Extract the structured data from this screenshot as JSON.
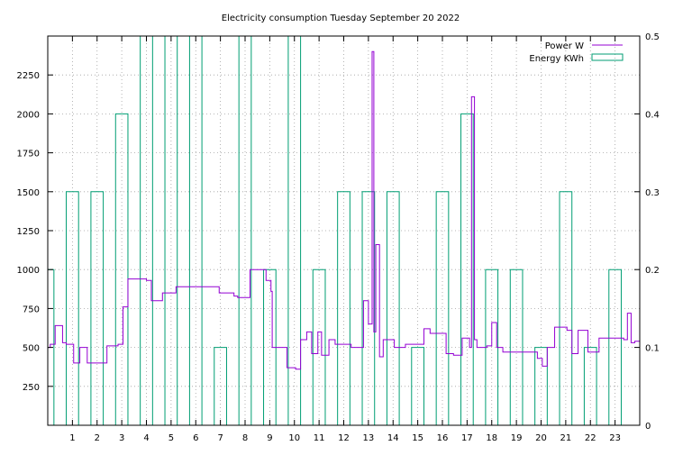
{
  "chart_data": {
    "type": "line",
    "title": "Electricity consumption Tuesday September 20 2022",
    "xlabel": "",
    "ylabel": "",
    "y2label": "",
    "xlim": [
      0,
      24
    ],
    "ylim": [
      0,
      2500
    ],
    "y2lim": [
      0,
      0.5
    ],
    "x_ticks": [
      "1",
      "2",
      "3",
      "4",
      "5",
      "6",
      "7",
      "8",
      "9",
      "10",
      "11",
      "12",
      "13",
      "14",
      "15",
      "16",
      "17",
      "18",
      "19",
      "20",
      "21",
      "22",
      "23"
    ],
    "y_ticks": [
      "250",
      "500",
      "750",
      "1000",
      "1250",
      "1500",
      "1750",
      "2000",
      "2250"
    ],
    "y2_ticks": [
      "0",
      "0.1",
      "0.2",
      "0.3",
      "0.4",
      "0.5"
    ],
    "grid": true,
    "legend_position": "top-right",
    "series": [
      {
        "name": "Power W",
        "color": "#9400d3",
        "axis": "left",
        "style": "steps",
        "x": [
          0,
          0.1,
          0.3,
          0.6,
          0.75,
          1.05,
          1.3,
          1.6,
          1.85,
          2.4,
          2.85,
          3.05,
          3.25,
          4.0,
          4.2,
          4.65,
          5.2,
          6.3,
          6.95,
          7.55,
          7.7,
          8.2,
          8.85,
          9.05,
          9.1,
          9.7,
          10.05,
          10.25,
          10.5,
          10.7,
          10.95,
          11.1,
          11.4,
          11.65,
          12.3,
          12.8,
          13.0,
          13.15,
          13.22,
          13.3,
          13.45,
          13.6,
          14.05,
          14.5,
          15.25,
          15.5,
          16.15,
          16.45,
          16.8,
          17.1,
          17.18,
          17.3,
          17.4,
          17.8,
          18.0,
          18.2,
          18.45,
          19.15,
          19.45,
          19.85,
          20.05,
          20.25,
          20.55,
          21.05,
          21.25,
          21.5,
          21.9,
          22.35,
          23.35,
          23.5,
          23.65,
          23.8,
          24.0
        ],
        "y": [
          500,
          520,
          640,
          530,
          520,
          400,
          500,
          400,
          400,
          510,
          520,
          760,
          940,
          930,
          800,
          850,
          890,
          890,
          850,
          830,
          820,
          1000,
          930,
          860,
          500,
          370,
          360,
          550,
          600,
          460,
          600,
          450,
          550,
          520,
          500,
          800,
          650,
          2400,
          600,
          1160,
          440,
          550,
          500,
          520,
          620,
          590,
          460,
          450,
          560,
          500,
          2110,
          550,
          500,
          510,
          660,
          500,
          470,
          470,
          470,
          430,
          380,
          500,
          630,
          610,
          460,
          610,
          470,
          560,
          550,
          720,
          530,
          540,
          540
        ]
      },
      {
        "name": "Energy KWh",
        "color": "#009e73",
        "axis": "right",
        "style": "bars",
        "x": [
          0,
          1,
          2,
          3,
          4,
          5,
          6,
          7,
          8,
          9,
          10,
          11,
          12,
          13,
          14,
          15,
          16,
          17,
          18,
          19,
          20,
          21,
          22,
          23
        ],
        "y": [
          0.2,
          0.3,
          0.3,
          0.4,
          0.5,
          0.5,
          0.5,
          0.1,
          0.5,
          0.2,
          0.5,
          0.2,
          0.3,
          0.3,
          0.3,
          0.1,
          0.3,
          0.4,
          0.2,
          0.2,
          0.1,
          0.3,
          0.1,
          0.2
        ]
      }
    ]
  }
}
